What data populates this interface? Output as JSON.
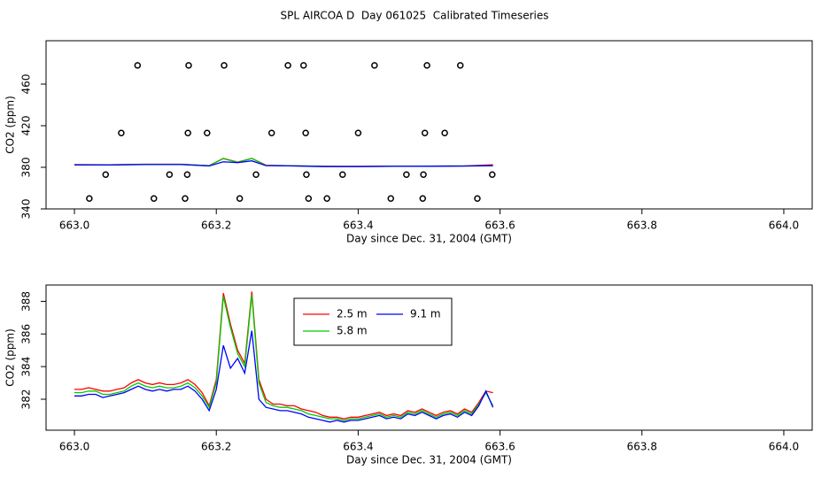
{
  "chart_data": [
    {
      "type": "line",
      "title": "SPL AIRCOA D  Day 061025  Calibrated Timeseries",
      "xlabel": "Day since Dec. 31, 2004 (GMT)",
      "ylabel": "CO2 (ppm)",
      "xlim": [
        662.96,
        664.04
      ],
      "ylim": [
        340,
        501.7
      ],
      "xticks": [
        {
          "value": 663,
          "label": "663.0"
        },
        663.2,
        663.4,
        663.6,
        663.8,
        {
          "value": 664,
          "label": "664.0"
        }
      ],
      "yticks": [
        340,
        380,
        420,
        460
      ],
      "points": {
        "color": "#000000",
        "x": [
          663.089,
          663.161,
          663.211,
          663.301,
          663.323,
          663.423,
          663.497,
          663.544,
          663.066,
          663.16,
          663.187,
          663.278,
          663.326,
          663.4,
          663.494,
          663.522,
          663.044,
          663.134,
          663.159,
          663.256,
          663.327,
          663.378,
          663.468,
          663.492,
          663.589,
          663.021,
          663.112,
          663.156,
          663.233,
          663.33,
          663.356,
          663.446,
          663.491,
          663.568
        ],
        "y": [
          478,
          478,
          478,
          478,
          478,
          478,
          478,
          478,
          413,
          413,
          413,
          413,
          413,
          413,
          413,
          413,
          373,
          373,
          373,
          373,
          373,
          373,
          373,
          373,
          373,
          350,
          350,
          350,
          350,
          350,
          350,
          350,
          350,
          350
        ]
      },
      "x": [
        663.0,
        663.05,
        663.1,
        663.15,
        663.19,
        663.21,
        663.23,
        663.25,
        663.27,
        663.3,
        663.35,
        663.4,
        663.45,
        663.5,
        663.55,
        663.59
      ],
      "series": [
        {
          "color": "#ff0000",
          "values": [
            382.6,
            382.5,
            383.0,
            383.0,
            381.6,
            388.5,
            385.0,
            388.6,
            382.0,
            381.6,
            381.0,
            380.9,
            381.1,
            381.2,
            381.4,
            382.4
          ]
        },
        {
          "color": "#00cc00",
          "values": [
            382.4,
            382.3,
            382.8,
            382.8,
            381.5,
            388.3,
            384.8,
            388.4,
            381.8,
            381.5,
            380.9,
            380.8,
            381.0,
            381.1,
            381.3,
            381.6
          ]
        },
        {
          "color": "#0000ff",
          "values": [
            382.2,
            382.2,
            382.6,
            382.6,
            381.3,
            385.3,
            384.5,
            386.2,
            381.6,
            381.4,
            380.7,
            380.7,
            380.9,
            381.0,
            381.2,
            381.5
          ]
        }
      ]
    },
    {
      "type": "line",
      "xlabel": "Day since Dec. 31, 2004 (GMT)",
      "ylabel": "CO2 (ppm)",
      "xlim": [
        662.96,
        664.04
      ],
      "ylim": [
        380.1,
        389.0
      ],
      "xticks": [
        {
          "value": 663,
          "label": "663.0"
        },
        663.2,
        663.4,
        663.6,
        663.8,
        {
          "value": 664,
          "label": "664.0"
        }
      ],
      "yticks": [
        382,
        384,
        386,
        388
      ],
      "x": [
        663.0,
        663.01,
        663.02,
        663.03,
        663.04,
        663.05,
        663.06,
        663.07,
        663.08,
        663.09,
        663.1,
        663.11,
        663.12,
        663.13,
        663.14,
        663.15,
        663.16,
        663.17,
        663.18,
        663.19,
        663.2,
        663.21,
        663.22,
        663.23,
        663.24,
        663.25,
        663.26,
        663.27,
        663.28,
        663.29,
        663.3,
        663.31,
        663.32,
        663.33,
        663.34,
        663.35,
        663.36,
        663.37,
        663.38,
        663.39,
        663.4,
        663.41,
        663.42,
        663.43,
        663.44,
        663.45,
        663.46,
        663.47,
        663.48,
        663.49,
        663.5,
        663.51,
        663.52,
        663.53,
        663.54,
        663.55,
        663.56,
        663.57,
        663.58,
        663.59
      ],
      "series": [
        {
          "name": "2.5 m",
          "color": "#ff0000",
          "values": [
            382.6,
            382.6,
            382.7,
            382.6,
            382.5,
            382.5,
            382.6,
            382.7,
            383.0,
            383.2,
            383.0,
            382.9,
            383.0,
            382.9,
            382.9,
            383.0,
            383.2,
            382.9,
            382.4,
            381.6,
            383.2,
            388.5,
            386.6,
            385.0,
            384.2,
            388.6,
            383.2,
            382.0,
            381.7,
            381.7,
            381.6,
            381.6,
            381.4,
            381.3,
            381.2,
            381.0,
            380.9,
            380.9,
            380.8,
            380.9,
            380.9,
            381.0,
            381.1,
            381.2,
            381.0,
            381.1,
            381.0,
            381.3,
            381.2,
            381.4,
            381.2,
            381.0,
            381.2,
            381.3,
            381.1,
            381.4,
            381.2,
            381.8,
            382.5,
            382.4
          ]
        },
        {
          "name": "5.8 m",
          "color": "#00cc00",
          "values": [
            382.4,
            382.4,
            382.5,
            382.5,
            382.3,
            382.3,
            382.4,
            382.5,
            382.8,
            383.0,
            382.8,
            382.7,
            382.8,
            382.7,
            382.7,
            382.8,
            383.0,
            382.7,
            382.2,
            381.5,
            383.0,
            388.3,
            386.4,
            384.8,
            384.0,
            388.4,
            383.0,
            381.8,
            381.6,
            381.5,
            381.5,
            381.4,
            381.3,
            381.1,
            381.0,
            380.9,
            380.8,
            380.8,
            380.7,
            380.8,
            380.8,
            380.9,
            381.0,
            381.1,
            380.9,
            381.0,
            380.9,
            381.2,
            381.1,
            381.3,
            381.1,
            380.9,
            381.1,
            381.2,
            381.0,
            381.3,
            381.1,
            381.7,
            382.4,
            381.6
          ]
        },
        {
          "name": "9.1 m",
          "color": "#0000ff",
          "values": [
            382.2,
            382.2,
            382.3,
            382.3,
            382.1,
            382.2,
            382.3,
            382.4,
            382.6,
            382.8,
            382.6,
            382.5,
            382.6,
            382.5,
            382.6,
            382.6,
            382.8,
            382.5,
            382.0,
            381.3,
            382.6,
            385.3,
            383.9,
            384.5,
            383.6,
            386.2,
            382.0,
            381.5,
            381.4,
            381.3,
            381.3,
            381.2,
            381.1,
            380.9,
            380.8,
            380.7,
            380.6,
            380.7,
            380.6,
            380.7,
            380.7,
            380.8,
            380.9,
            381.0,
            380.8,
            380.9,
            380.8,
            381.1,
            381.0,
            381.2,
            381.0,
            380.8,
            381.0,
            381.1,
            380.9,
            381.2,
            381.0,
            381.6,
            382.5,
            381.5
          ]
        }
      ]
    }
  ]
}
